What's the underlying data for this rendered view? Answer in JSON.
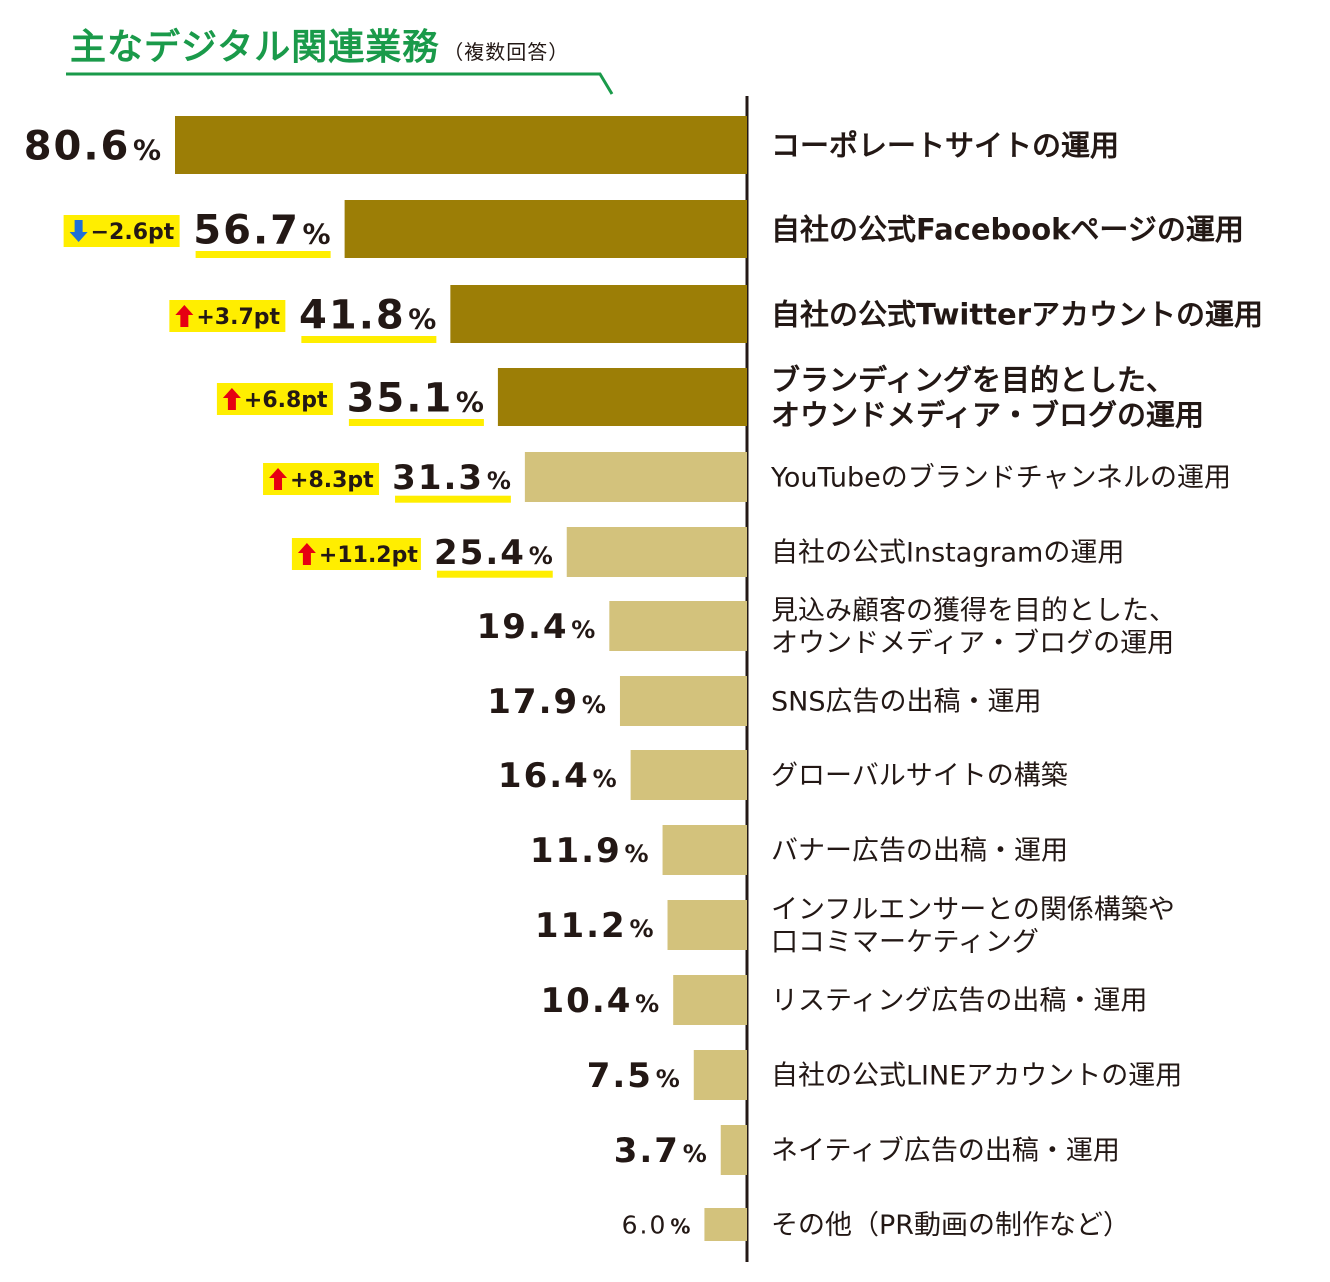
{
  "chart_data": {
    "type": "bar",
    "orientation": "horizontal",
    "title": "主なデジタル関連業務",
    "subtitle": "（複数回答）",
    "value_unit": "%",
    "xlim": [
      0,
      80.6
    ],
    "grid": false,
    "legend": "none",
    "colors": {
      "highlight": "#9c7e06",
      "normal": "#d3c27c",
      "title": "#1a9a4a",
      "change_box": "#ffee00",
      "up_arrow": "#e60012",
      "down_arrow": "#1e6fd9",
      "axis": "#231815"
    },
    "bars": [
      {
        "category": "コーポレートサイトの運用",
        "value": 80.6,
        "label": "80.6",
        "highlight": true,
        "change": ""
      },
      {
        "category": "自社の公式Facebookページの運用",
        "value": 56.7,
        "label": "56.7",
        "highlight": true,
        "change": "−2.6pt",
        "direction": "down"
      },
      {
        "category": "自社の公式Twitterアカウントの運用",
        "value": 41.8,
        "label": "41.8",
        "highlight": true,
        "change": "+3.7pt",
        "direction": "up"
      },
      {
        "category": "ブランディングを目的とした、\nオウンドメディア・ブログの運用",
        "value": 35.1,
        "label": "35.1",
        "highlight": true,
        "change": "+6.8pt",
        "direction": "up"
      },
      {
        "category": "YouTubeのブランドチャンネルの運用",
        "value": 31.3,
        "label": "31.3",
        "highlight": false,
        "change": "+8.3pt",
        "direction": "up"
      },
      {
        "category": "自社の公式Instagramの運用",
        "value": 25.4,
        "label": "25.4",
        "highlight": false,
        "change": "+11.2pt",
        "direction": "up"
      },
      {
        "category": "見込み顧客の獲得を目的とした、\nオウンドメディア・ブログの運用",
        "value": 19.4,
        "label": "19.4",
        "highlight": false,
        "change": ""
      },
      {
        "category": "SNS広告の出稿・運用",
        "value": 17.9,
        "label": "17.9",
        "highlight": false,
        "change": ""
      },
      {
        "category": "グローバルサイトの構築",
        "value": 16.4,
        "label": "16.4",
        "highlight": false,
        "change": ""
      },
      {
        "category": "バナー広告の出稿・運用",
        "value": 11.9,
        "label": "11.9",
        "highlight": false,
        "change": ""
      },
      {
        "category": "インフルエンサーとの関係構築や\n口コミマーケティング",
        "value": 11.2,
        "label": "11.2",
        "highlight": false,
        "change": ""
      },
      {
        "category": "リスティング広告の出稿・運用",
        "value": 10.4,
        "label": "10.4",
        "highlight": false,
        "change": ""
      },
      {
        "category": "自社の公式LINEアカウントの運用",
        "value": 7.5,
        "label": "7.5",
        "highlight": false,
        "change": ""
      },
      {
        "category": "ネイティブ広告の出稿・運用",
        "value": 3.7,
        "label": "3.7",
        "highlight": false,
        "change": ""
      },
      {
        "category": "その他（PR動画の制作など）",
        "value": 6.0,
        "label": "6.0",
        "highlight": false,
        "change": ""
      }
    ]
  }
}
